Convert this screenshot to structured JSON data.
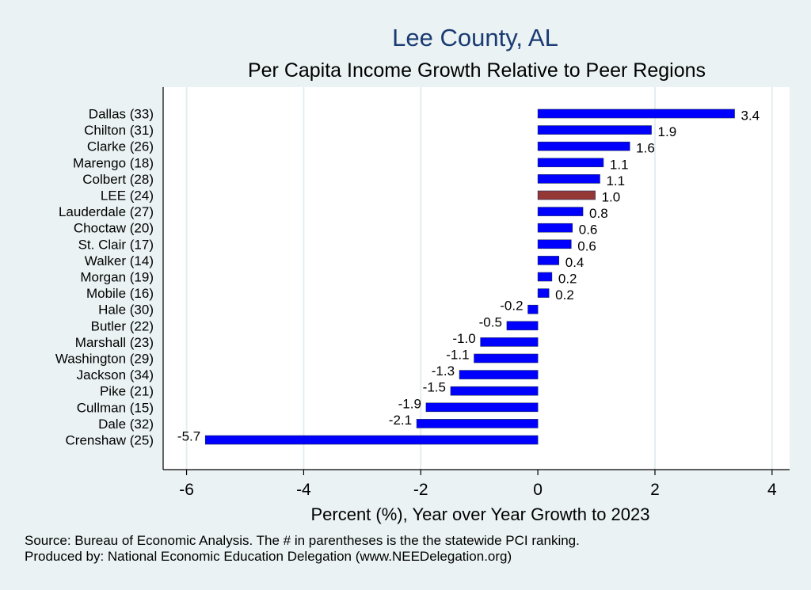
{
  "chart_data": {
    "type": "bar",
    "orientation": "horizontal",
    "title": "Lee County, AL",
    "subtitle": "Per Capita Income Growth Relative to Peer Regions",
    "xlabel": "Percent (%), Year over Year Growth to 2023",
    "ylabel": "",
    "xlim": [
      -6.4,
      4.3
    ],
    "xticks": [
      -6,
      -4,
      -2,
      0,
      2,
      4
    ],
    "xtick_labels": [
      "-6",
      "-4",
      "-2",
      "0",
      "2",
      "4"
    ],
    "grid": true,
    "categories": [
      "Dallas (33)",
      "Chilton (31)",
      "Clarke (26)",
      "Marengo (18)",
      "Colbert (28)",
      "LEE (24)",
      "Lauderdale (27)",
      "Choctaw (20)",
      "St. Clair (17)",
      "Walker (14)",
      "Morgan (19)",
      "Mobile (16)",
      "Hale (30)",
      "Butler (22)",
      "Marshall (23)",
      "Washington (29)",
      "Jackson (34)",
      "Pike (21)",
      "Cullman (15)",
      "Dale (32)",
      "Crenshaw (25)"
    ],
    "values": [
      3.36,
      1.94,
      1.57,
      1.12,
      1.06,
      0.98,
      0.77,
      0.59,
      0.57,
      0.36,
      0.24,
      0.19,
      -0.17,
      -0.53,
      -0.98,
      -1.09,
      -1.34,
      -1.49,
      -1.91,
      -2.07,
      -5.68
    ],
    "value_labels": [
      "3.4",
      "1.9",
      "1.6",
      "1.1",
      "1.1",
      "1.0",
      "0.8",
      "0.6",
      "0.6",
      "0.4",
      "0.2",
      "0.2",
      "-0.2",
      "-0.5",
      "-1.0",
      "-1.1",
      "-1.3",
      "-1.5",
      "-1.9",
      "-2.1",
      "-5.7"
    ],
    "highlight": "LEE (24)",
    "colors": {
      "bar": "#0000ff",
      "highlight": "#953735",
      "background": "#eaf2f3",
      "plot": "#ffffff",
      "grid": "#e3eef0",
      "title": "#1a3b73"
    },
    "source_note": "Source: Bureau of Economic Analysis. The # in parentheses is the the statewide PCI ranking.",
    "producer_note": "Produced by: National Economic Education Delegation (www.NEEDelegation.org)"
  }
}
